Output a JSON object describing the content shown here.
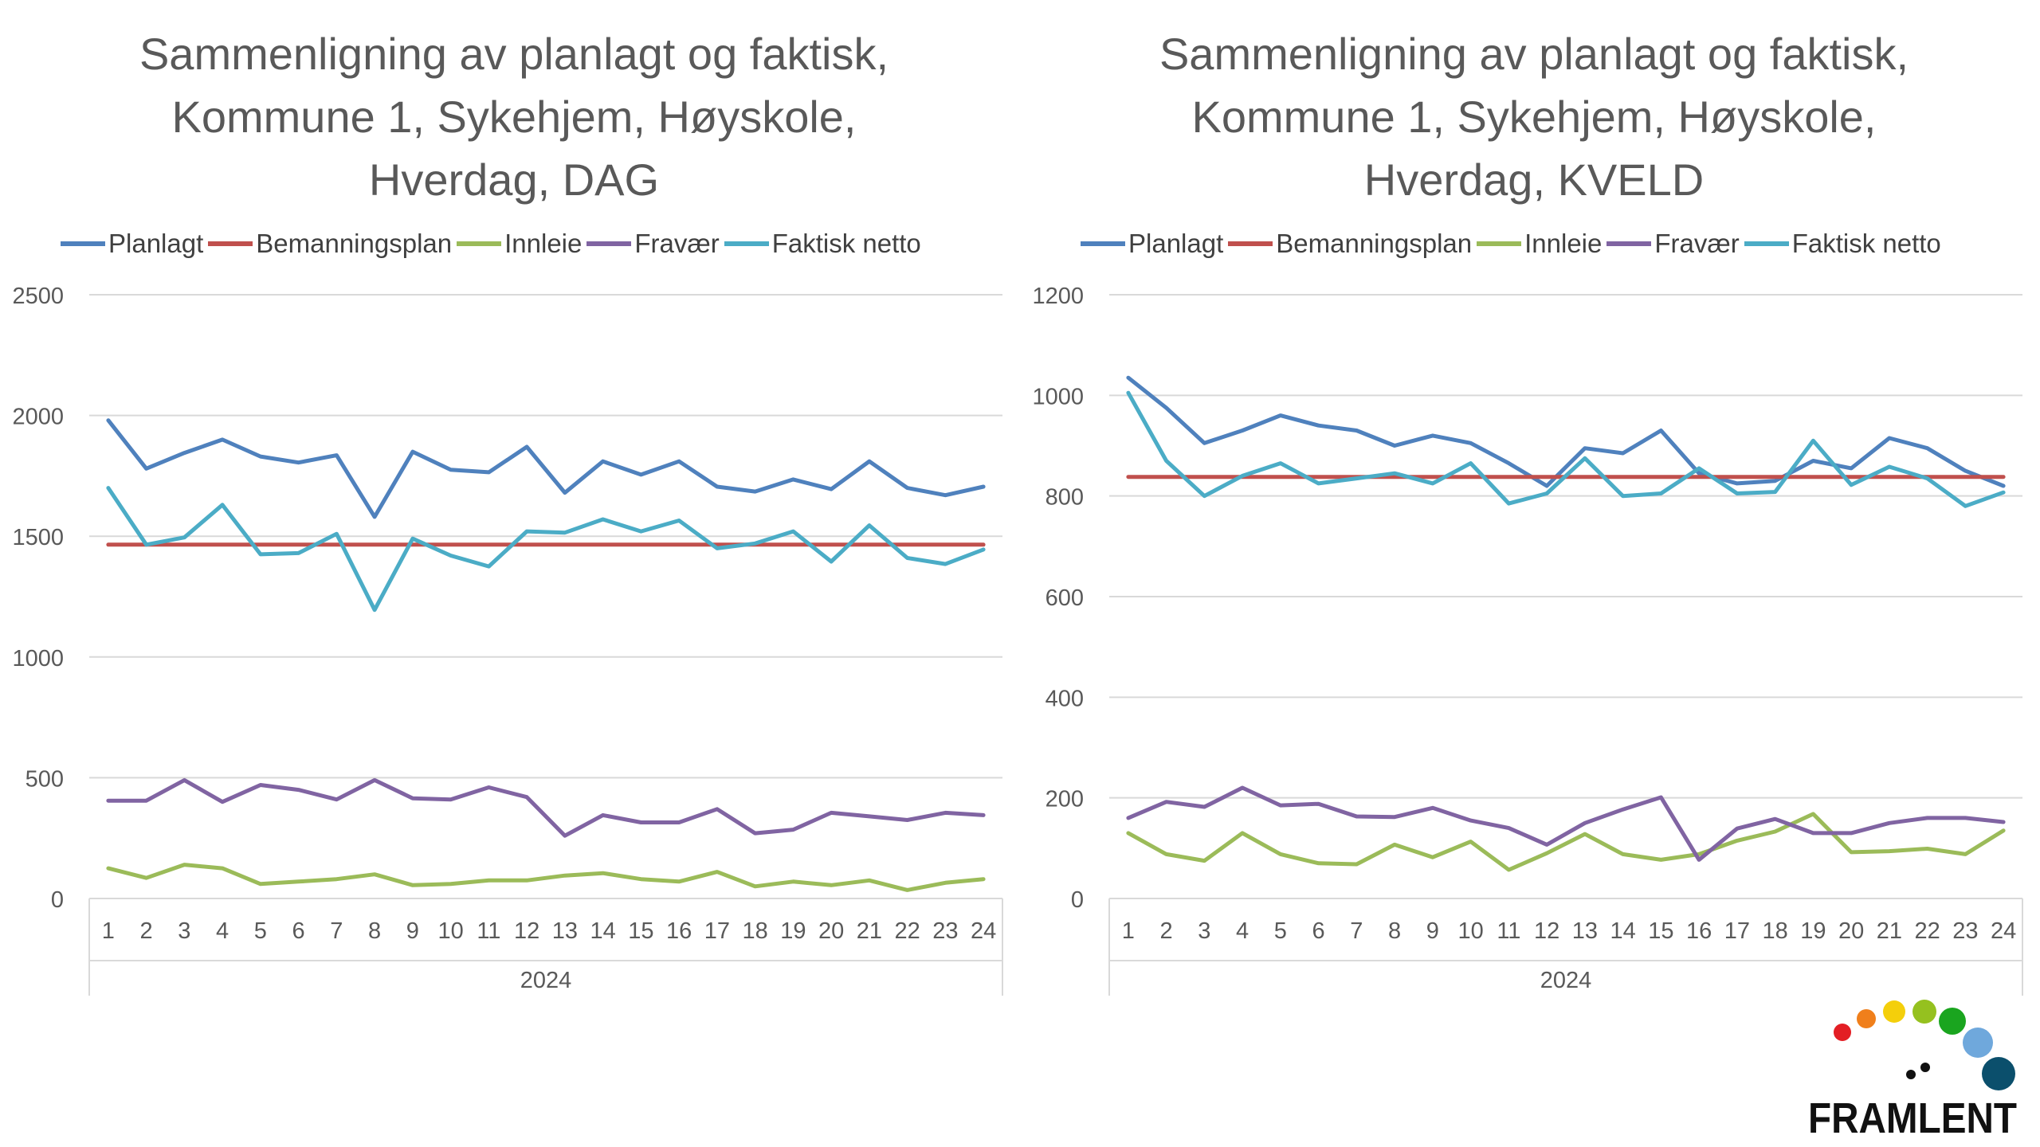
{
  "chart_data": [
    {
      "type": "line",
      "title": [
        "Sammenligning av planlagt og faktisk,",
        "Kommune 1, Sykehjem, Høyskole,",
        "Hverdag, DAG"
      ],
      "categories": [
        "1",
        "2",
        "3",
        "4",
        "5",
        "6",
        "7",
        "8",
        "9",
        "10",
        "11",
        "12",
        "13",
        "14",
        "15",
        "16",
        "17",
        "18",
        "19",
        "20",
        "21",
        "22",
        "23",
        "24"
      ],
      "group_label": "2024",
      "ylim": [
        0,
        2500
      ],
      "yticks": [
        0,
        500,
        1000,
        1500,
        2000,
        2500
      ],
      "ytick_labels": [
        "0",
        "500",
        "1000",
        "1500",
        "2000",
        "2500"
      ],
      "grid": true,
      "legend_position": "top",
      "series": [
        {
          "name": "Planlagt",
          "color": "#4f81bd",
          "values": [
            1980,
            1780,
            1845,
            1900,
            1830,
            1805,
            1835,
            1580,
            1850,
            1775,
            1765,
            1870,
            1680,
            1810,
            1755,
            1810,
            1705,
            1685,
            1735,
            1695,
            1810,
            1700,
            1670,
            1705
          ]
        },
        {
          "name": "Bemanningsplan",
          "color": "#c0504d",
          "values": [
            1465,
            1465,
            1465,
            1465,
            1465,
            1465,
            1465,
            1465,
            1465,
            1465,
            1465,
            1465,
            1465,
            1465,
            1465,
            1465,
            1465,
            1465,
            1465,
            1465,
            1465,
            1465,
            1465,
            1465
          ]
        },
        {
          "name": "Innleie",
          "color": "#9bbb59",
          "values": [
            125,
            85,
            140,
            125,
            60,
            70,
            80,
            100,
            55,
            60,
            75,
            75,
            95,
            105,
            80,
            70,
            110,
            50,
            70,
            55,
            75,
            35,
            65,
            80
          ]
        },
        {
          "name": "Fravær",
          "color": "#8064a2",
          "values": [
            405,
            405,
            490,
            400,
            470,
            450,
            410,
            490,
            415,
            410,
            460,
            420,
            260,
            345,
            315,
            315,
            370,
            270,
            285,
            355,
            340,
            325,
            355,
            345
          ]
        },
        {
          "name": "Faktisk netto",
          "color": "#4bacc6",
          "values": [
            1700,
            1465,
            1495,
            1630,
            1425,
            1430,
            1510,
            1195,
            1490,
            1420,
            1375,
            1520,
            1515,
            1570,
            1520,
            1565,
            1450,
            1470,
            1520,
            1395,
            1545,
            1410,
            1385,
            1445
          ]
        }
      ]
    },
    {
      "type": "line",
      "title": [
        "Sammenligning av planlagt og faktisk,",
        "Kommune 1, Sykehjem, Høyskole,",
        "Hverdag, KVELD"
      ],
      "categories": [
        "1",
        "2",
        "3",
        "4",
        "5",
        "6",
        "7",
        "8",
        "9",
        "10",
        "11",
        "12",
        "13",
        "14",
        "15",
        "16",
        "17",
        "18",
        "19",
        "20",
        "21",
        "22",
        "23",
        "24"
      ],
      "group_label": "2024",
      "ylim": [
        0,
        1200
      ],
      "yticks": [
        0,
        200,
        400,
        600,
        800,
        1000,
        1200
      ],
      "ytick_labels": [
        "0",
        "200",
        "400",
        "600",
        "800",
        "1000",
        "1200"
      ],
      "grid": true,
      "legend_position": "top",
      "series": [
        {
          "name": "Planlagt",
          "color": "#4f81bd",
          "values": [
            1035,
            975,
            905,
            930,
            960,
            940,
            930,
            900,
            920,
            905,
            865,
            820,
            895,
            885,
            930,
            845,
            825,
            830,
            870,
            855,
            915,
            895,
            850,
            820
          ]
        },
        {
          "name": "Bemanningsplan",
          "color": "#c0504d",
          "values": [
            838,
            838,
            838,
            838,
            838,
            838,
            838,
            838,
            838,
            838,
            838,
            838,
            838,
            838,
            838,
            838,
            838,
            838,
            838,
            838,
            838,
            838,
            838,
            838
          ]
        },
        {
          "name": "Innleie",
          "color": "#9bbb59",
          "values": [
            130,
            88,
            75,
            130,
            88,
            70,
            68,
            107,
            82,
            113,
            57,
            90,
            128,
            88,
            77,
            88,
            115,
            133,
            168,
            92,
            94,
            99,
            88,
            135
          ]
        },
        {
          "name": "Fravær",
          "color": "#8064a2",
          "values": [
            160,
            192,
            182,
            220,
            185,
            188,
            163,
            162,
            180,
            155,
            140,
            107,
            150,
            177,
            201,
            77,
            139,
            158,
            130,
            130,
            150,
            160,
            160,
            152
          ]
        },
        {
          "name": "Faktisk netto",
          "color": "#4bacc6",
          "values": [
            1005,
            870,
            800,
            840,
            865,
            825,
            835,
            845,
            825,
            865,
            785,
            805,
            875,
            800,
            805,
            855,
            805,
            808,
            910,
            822,
            858,
            835,
            780,
            807
          ]
        }
      ]
    }
  ],
  "logo": {
    "text": "FRAMLENT",
    "dot_colors": [
      "#e31e24",
      "#f07f1b",
      "#f4cf0b",
      "#95c11f",
      "#1aa51f",
      "#6fa8dc",
      "#0b4f6c"
    ]
  }
}
